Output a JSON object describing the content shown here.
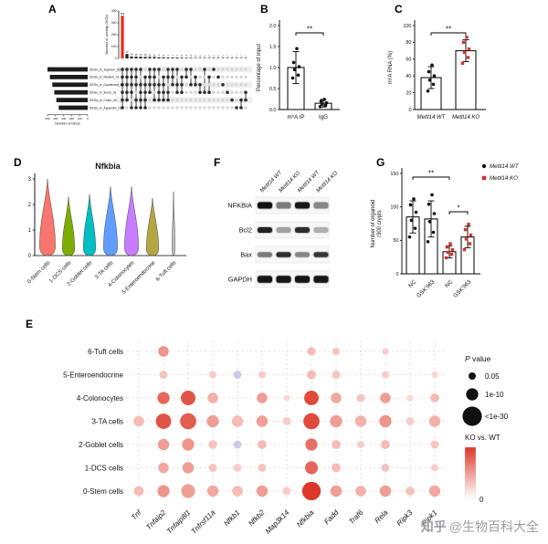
{
  "watermark": {
    "brand": "知乎",
    "handle": "@生物百科大全"
  },
  "panel_labels": {
    "A": "A",
    "B": "B",
    "C": "C",
    "D": "D",
    "E": "E",
    "F": "F",
    "G": "G"
  },
  "colors": {
    "accent_red": "#D2352B",
    "upset_highlight": "#E8291C",
    "dot_max": "#DC3728"
  },
  "chart_data": [
    {
      "panel": "A",
      "type": "upset",
      "bar_axis_label": "Number of overlap DEGs",
      "bar_ticks": [
        0,
        100,
        200,
        300,
        400
      ],
      "intersection_values": [
        360,
        37,
        16,
        15,
        14,
        13,
        11,
        11,
        9,
        8,
        7,
        7,
        7,
        6,
        5,
        5,
        4,
        4,
        3,
        3,
        2,
        2,
        2,
        1,
        1,
        1,
        1,
        1
      ],
      "intersection_sets": [
        [
          0,
          1,
          2,
          3,
          4,
          5
        ],
        [
          0,
          1,
          2,
          3,
          4
        ],
        [
          0,
          1,
          2,
          3,
          5
        ],
        [
          0,
          1,
          2,
          4,
          5
        ],
        [
          0,
          2,
          3,
          4,
          5
        ],
        [
          1,
          2,
          3,
          4,
          5
        ],
        [
          0,
          1,
          2,
          3
        ],
        [
          0,
          1,
          2,
          4
        ],
        [
          0,
          2,
          3,
          4
        ],
        [
          1,
          2,
          3,
          4
        ],
        [
          0,
          1,
          3,
          4
        ],
        [
          0,
          1,
          2
        ],
        [
          0,
          2,
          3
        ],
        [
          1,
          2,
          3
        ],
        [
          0,
          1
        ],
        [
          0,
          2
        ],
        [
          1,
          2
        ],
        [
          2,
          3
        ],
        [
          0,
          3
        ],
        [
          1,
          3
        ],
        [
          0
        ],
        [
          1
        ],
        [
          2
        ],
        [
          3
        ],
        [
          4
        ],
        [
          5
        ],
        [
          4,
          5
        ],
        [
          3,
          4
        ]
      ],
      "highlight_index": 0,
      "sets": [
        {
          "name": "DEGs_in_Jejunum_hs",
          "size": 500
        },
        {
          "name": "DEGs_in_Rectum_hs",
          "size": 470
        },
        {
          "name": "DEGs_in_Duodenum_hs",
          "size": 440
        },
        {
          "name": "DEGs_in_Ileum_hs",
          "size": 415
        },
        {
          "name": "DEGs_in_Colon_hs",
          "size": 390
        },
        {
          "name": "DEGs_in_Appendix_hs",
          "size": 360
        }
      ],
      "set_axis_label": "Number of DEGs",
      "set_ticks": [
        500,
        400,
        300,
        200,
        100,
        0
      ]
    },
    {
      "panel": "B",
      "type": "bar",
      "ylabel": [
        "Percentage of input"
      ],
      "ylim": [
        0,
        2
      ],
      "yticks": [
        "0.0",
        "0.5",
        "1.0",
        "1.5",
        "2.0"
      ],
      "categories": [
        "m⁶A IP",
        "IgG"
      ],
      "means": [
        1.0,
        0.15
      ],
      "errors": [
        0.38,
        0.09
      ],
      "points": [
        [
          0.75,
          0.82,
          0.95,
          1.02,
          1.12,
          1.45
        ],
        [
          0.07,
          0.1,
          0.13,
          0.16,
          0.2,
          0.24
        ]
      ],
      "point_styles": [
        "black-circle",
        "black-circle"
      ],
      "significance": [
        {
          "between": [
            0,
            1
          ],
          "label": "**"
        }
      ]
    },
    {
      "panel": "C",
      "type": "bar",
      "ylabel": [
        "m⁶A RNA (%)"
      ],
      "ylim": [
        0,
        100
      ],
      "yticks": [
        "0",
        "20",
        "40",
        "60",
        "80",
        "100"
      ],
      "categories": [
        "Mettl14 WT",
        "Mettl14 KO"
      ],
      "means": [
        38,
        70
      ],
      "errors": [
        13,
        13
      ],
      "points": [
        [
          22,
          30,
          35,
          40,
          45,
          53
        ],
        [
          55,
          62,
          68,
          72,
          80,
          86
        ]
      ],
      "point_styles": [
        "black-circle",
        "red-square"
      ],
      "significance": [
        {
          "between": [
            0,
            1
          ],
          "label": "**"
        }
      ]
    },
    {
      "panel": "D",
      "type": "violin",
      "title": "Nfkbia",
      "ylim": [
        0,
        3.3
      ],
      "yticks": [
        0,
        1,
        2,
        3
      ],
      "categories": [
        "0-Stem cells",
        "1-DCS cells",
        "2-Goblet cells",
        "3-TA cells",
        "4-Colonocytes",
        "5-Enteroendocrine",
        "6-Tuft cells"
      ],
      "max_values": [
        3.0,
        2.3,
        2.4,
        2.7,
        2.7,
        2.25,
        2.5
      ],
      "widths": [
        9,
        7,
        7,
        8,
        8,
        7,
        1.6
      ],
      "fill_colors": [
        "#F8766D",
        "#7CAE00",
        "#00BFC4",
        "#619CFF",
        "#C77CFF",
        "#B5A642",
        "#BDBDBD"
      ]
    },
    {
      "panel": "E",
      "type": "dotplot",
      "rows": [
        "6-Tuft cells",
        "5-Enteroendocrine",
        "4-Colonocytes",
        "3-TA cells",
        "2-Goblet cells",
        "1-DCS cells",
        "0-Stem cells"
      ],
      "columns": [
        "Tnf",
        "Tnfaip2",
        "Tnfaip8l1",
        "Tnfrsf11a",
        "Nfkb1",
        "Nfkb2",
        "Map3k14",
        "Nfkbia",
        "Fadd",
        "Traf6",
        "Rela",
        "Ripk3",
        "Ripk1"
      ],
      "dots": [
        [
          0,
          [
            0.45,
            0.5
          ],
          0,
          0,
          0,
          0,
          0,
          [
            0.3,
            0.3
          ],
          [
            0.25,
            0.25
          ],
          0,
          [
            0.2,
            0.2
          ],
          0,
          0
        ],
        [
          0,
          [
            0.3,
            0.25
          ],
          0,
          [
            0.25,
            0.2
          ],
          [
            0.3,
            -1
          ],
          [
            0.25,
            0.2
          ],
          0,
          [
            0.35,
            0.3
          ],
          [
            0.3,
            0.25
          ],
          0,
          [
            0.25,
            0.2
          ],
          0,
          [
            0.2,
            0.15
          ]
        ],
        [
          0,
          [
            0.55,
            0.75
          ],
          [
            0.7,
            0.85
          ],
          [
            0.45,
            0.35
          ],
          0,
          [
            0.45,
            0.45
          ],
          [
            0.2,
            0.15
          ],
          [
            0.7,
            0.9
          ],
          [
            0.45,
            0.4
          ],
          [
            0.3,
            0.25
          ],
          [
            0.45,
            0.45
          ],
          [
            0.2,
            0.15
          ],
          [
            0.35,
            0.3
          ]
        ],
        [
          [
            0.45,
            0.3
          ],
          [
            0.75,
            0.85
          ],
          [
            0.8,
            0.8
          ],
          [
            0.55,
            0.45
          ],
          [
            0.5,
            0.3
          ],
          [
            0.5,
            0.45
          ],
          [
            0.3,
            0.2
          ],
          [
            0.8,
            0.9
          ],
          [
            0.55,
            0.45
          ],
          [
            0.5,
            0.35
          ],
          [
            0.55,
            0.5
          ],
          [
            0.3,
            0.2
          ],
          [
            0.5,
            0.35
          ]
        ],
        [
          0,
          [
            0.5,
            0.45
          ],
          [
            0.55,
            0.5
          ],
          [
            0.35,
            0.25
          ],
          [
            0.3,
            -1
          ],
          [
            0.35,
            0.3
          ],
          0,
          [
            0.55,
            0.7
          ],
          [
            0.35,
            0.3
          ],
          [
            0.25,
            0.2
          ],
          [
            0.35,
            0.3
          ],
          0,
          [
            0.3,
            0.25
          ]
        ],
        [
          0,
          [
            0.45,
            0.4
          ],
          [
            0.5,
            0.45
          ],
          [
            0.3,
            0.25
          ],
          [
            0.3,
            0.2
          ],
          [
            0.3,
            0.25
          ],
          0,
          [
            0.6,
            0.75
          ],
          [
            0.35,
            0.3
          ],
          0,
          [
            0.3,
            0.25
          ],
          0,
          [
            0.25,
            0.2
          ]
        ],
        [
          [
            0.4,
            0.3
          ],
          [
            0.55,
            0.5
          ],
          [
            0.65,
            0.45
          ],
          [
            0.5,
            0.4
          ],
          [
            0.45,
            0.3
          ],
          [
            0.5,
            0.45
          ],
          [
            0.3,
            0.2
          ],
          [
            0.95,
            1.0
          ],
          [
            0.5,
            0.45
          ],
          [
            0.45,
            0.35
          ],
          [
            0.5,
            0.45
          ],
          [
            0.35,
            0.25
          ],
          [
            0.5,
            0.4
          ]
        ]
      ],
      "size_legend": {
        "title": "P value",
        "entries": [
          {
            "label": "0.05",
            "size": 0.25
          },
          {
            "label": "1e-10",
            "size": 0.55
          },
          {
            "label": "<1e-30",
            "size": 1.0
          }
        ]
      },
      "color_legend": {
        "title": "KO vs. WT",
        "min_label": "0"
      }
    },
    {
      "panel": "F",
      "type": "western_blot",
      "lanes": [
        "Mettl14 WT",
        "Mettl14 KO",
        "Mettl14 WT",
        "Mettl14 KO"
      ],
      "proteins": [
        "NFKBIA",
        "Bcl2",
        "Bax",
        "GAPDH"
      ],
      "band_intensities": [
        [
          0.95,
          0.45,
          0.9,
          0.4
        ],
        [
          0.85,
          0.3,
          0.8,
          0.25
        ],
        [
          0.45,
          0.8,
          0.4,
          0.75
        ],
        [
          0.92,
          0.92,
          0.92,
          0.92
        ]
      ]
    },
    {
      "panel": "G",
      "type": "bar",
      "ylabel": [
        "Number of organoid",
        "/300 crypts"
      ],
      "ylim": [
        0,
        150
      ],
      "yticks": [
        "0",
        "50",
        "100",
        "150"
      ],
      "categories": [
        "NC",
        "GSK'963",
        "NC",
        "GSK'963"
      ],
      "means": [
        85,
        82,
        33,
        55
      ],
      "errors": [
        24,
        27,
        9,
        16
      ],
      "points": [
        [
          55,
          68,
          80,
          92,
          103,
          112
        ],
        [
          48,
          62,
          78,
          90,
          104,
          118
        ],
        [
          24,
          29,
          32,
          36,
          40,
          45
        ],
        [
          36,
          45,
          52,
          58,
          66,
          74
        ]
      ],
      "point_styles": [
        "black-circle",
        "black-circle",
        "red-square",
        "red-square"
      ],
      "significance": [
        {
          "between": [
            0,
            2
          ],
          "label": "**"
        },
        {
          "between": [
            2,
            3
          ],
          "label": "*"
        }
      ],
      "legend": [
        {
          "label": "Mettl14 WT",
          "style": "black-circle"
        },
        {
          "label": "Mettl14 KO",
          "style": "red-square"
        }
      ]
    }
  ]
}
